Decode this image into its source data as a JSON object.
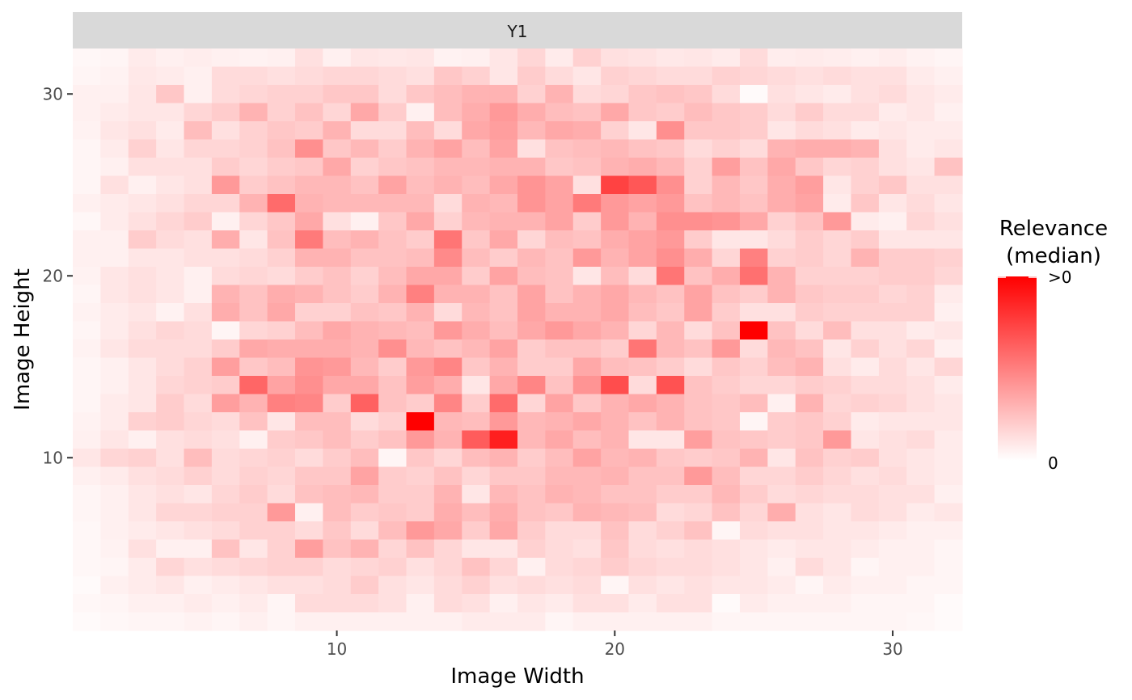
{
  "chart_data": {
    "type": "heatmap",
    "facet_label": "Y1",
    "xlabel": "Image Width",
    "ylabel": "Image Height",
    "x_ticks": [
      10,
      20,
      30
    ],
    "y_ticks": [
      10,
      20,
      30
    ],
    "xlim": [
      0.5,
      32.5
    ],
    "ylim": [
      0.5,
      32.5
    ],
    "grid": false,
    "legend": {
      "title_line1": "Relevance",
      "title_line2": "(median)",
      "high_label": ">0",
      "low_label": "0",
      "position": "right",
      "high_color": "#FF0000",
      "low_color": "#FFFFFF"
    },
    "colors": {
      "strip_background": "#D9D9D9",
      "panel_background": "#FFFFFF",
      "tick_color": "#333333"
    },
    "x": [
      1,
      2,
      3,
      4,
      5,
      6,
      7,
      8,
      9,
      10,
      11,
      12,
      13,
      14,
      15,
      16,
      17,
      18,
      19,
      20,
      21,
      22,
      23,
      24,
      25,
      26,
      27,
      28,
      29,
      30,
      31,
      32
    ],
    "y": [
      32,
      31,
      30,
      29,
      28,
      27,
      26,
      25,
      24,
      23,
      22,
      21,
      20,
      19,
      18,
      17,
      16,
      15,
      14,
      13,
      12,
      11,
      10,
      9,
      8,
      7,
      6,
      5,
      4,
      3,
      2,
      1
    ],
    "values": [
      [
        0.03,
        0.04,
        0.08,
        0.06,
        0.07,
        0.06,
        0.05,
        0.06,
        0.12,
        0.06,
        0.1,
        0.09,
        0.1,
        0.05,
        0.06,
        0.1,
        0.16,
        0.08,
        0.18,
        0.12,
        0.11,
        0.09,
        0.1,
        0.08,
        0.14,
        0.07,
        0.08,
        0.07,
        0.06,
        0.07,
        0.05,
        0.04
      ],
      [
        0.04,
        0.05,
        0.09,
        0.08,
        0.06,
        0.14,
        0.14,
        0.12,
        0.14,
        0.16,
        0.16,
        0.14,
        0.12,
        0.22,
        0.18,
        0.1,
        0.2,
        0.14,
        0.1,
        0.18,
        0.16,
        0.14,
        0.14,
        0.18,
        0.16,
        0.14,
        0.12,
        0.14,
        0.12,
        0.12,
        0.08,
        0.06
      ],
      [
        0.06,
        0.06,
        0.1,
        0.22,
        0.06,
        0.14,
        0.16,
        0.18,
        0.18,
        0.22,
        0.22,
        0.14,
        0.22,
        0.26,
        0.3,
        0.3,
        0.18,
        0.3,
        0.14,
        0.16,
        0.22,
        0.24,
        0.22,
        0.14,
        0.02,
        0.12,
        0.1,
        0.08,
        0.12,
        0.14,
        0.1,
        0.08
      ],
      [
        0.06,
        0.08,
        0.1,
        0.1,
        0.16,
        0.2,
        0.3,
        0.18,
        0.24,
        0.16,
        0.34,
        0.2,
        0.06,
        0.26,
        0.32,
        0.4,
        0.32,
        0.26,
        0.24,
        0.34,
        0.22,
        0.2,
        0.26,
        0.22,
        0.2,
        0.14,
        0.2,
        0.14,
        0.14,
        0.08,
        0.1,
        0.06
      ],
      [
        0.05,
        0.1,
        0.12,
        0.08,
        0.26,
        0.12,
        0.18,
        0.22,
        0.2,
        0.3,
        0.14,
        0.14,
        0.26,
        0.14,
        0.34,
        0.38,
        0.28,
        0.34,
        0.32,
        0.18,
        0.1,
        0.44,
        0.22,
        0.22,
        0.2,
        0.1,
        0.14,
        0.12,
        0.08,
        0.1,
        0.08,
        0.08
      ],
      [
        0.04,
        0.08,
        0.18,
        0.1,
        0.16,
        0.16,
        0.18,
        0.24,
        0.44,
        0.22,
        0.28,
        0.2,
        0.3,
        0.36,
        0.26,
        0.36,
        0.12,
        0.24,
        0.26,
        0.28,
        0.24,
        0.22,
        0.14,
        0.18,
        0.14,
        0.3,
        0.32,
        0.32,
        0.3,
        0.12,
        0.08,
        0.1
      ],
      [
        0.04,
        0.06,
        0.12,
        0.12,
        0.12,
        0.2,
        0.16,
        0.2,
        0.22,
        0.34,
        0.18,
        0.22,
        0.24,
        0.28,
        0.28,
        0.3,
        0.3,
        0.22,
        0.24,
        0.3,
        0.32,
        0.28,
        0.18,
        0.38,
        0.24,
        0.34,
        0.22,
        0.16,
        0.18,
        0.12,
        0.1,
        0.24
      ],
      [
        0.04,
        0.12,
        0.06,
        0.1,
        0.12,
        0.4,
        0.2,
        0.24,
        0.28,
        0.28,
        0.24,
        0.36,
        0.26,
        0.3,
        0.26,
        0.34,
        0.42,
        0.36,
        0.12,
        0.74,
        0.66,
        0.44,
        0.18,
        0.28,
        0.22,
        0.32,
        0.38,
        0.1,
        0.18,
        0.22,
        0.12,
        0.12
      ],
      [
        0.06,
        0.08,
        0.1,
        0.12,
        0.16,
        0.16,
        0.3,
        0.58,
        0.3,
        0.28,
        0.28,
        0.28,
        0.28,
        0.14,
        0.3,
        0.28,
        0.42,
        0.36,
        0.52,
        0.4,
        0.36,
        0.4,
        0.24,
        0.28,
        0.24,
        0.32,
        0.36,
        0.08,
        0.22,
        0.1,
        0.14,
        0.1
      ],
      [
        0.03,
        0.08,
        0.12,
        0.16,
        0.2,
        0.06,
        0.16,
        0.22,
        0.34,
        0.12,
        0.06,
        0.22,
        0.34,
        0.18,
        0.28,
        0.3,
        0.3,
        0.36,
        0.2,
        0.4,
        0.3,
        0.44,
        0.44,
        0.42,
        0.34,
        0.18,
        0.24,
        0.4,
        0.08,
        0.06,
        0.16,
        0.12
      ],
      [
        0.06,
        0.06,
        0.2,
        0.14,
        0.12,
        0.32,
        0.1,
        0.24,
        0.52,
        0.26,
        0.3,
        0.24,
        0.2,
        0.54,
        0.22,
        0.34,
        0.16,
        0.26,
        0.24,
        0.32,
        0.36,
        0.4,
        0.2,
        0.1,
        0.1,
        0.14,
        0.2,
        0.16,
        0.2,
        0.1,
        0.1,
        0.1
      ],
      [
        0.06,
        0.06,
        0.1,
        0.1,
        0.12,
        0.12,
        0.14,
        0.18,
        0.3,
        0.3,
        0.24,
        0.24,
        0.26,
        0.46,
        0.26,
        0.2,
        0.28,
        0.24,
        0.4,
        0.3,
        0.36,
        0.44,
        0.32,
        0.16,
        0.5,
        0.18,
        0.2,
        0.16,
        0.3,
        0.2,
        0.2,
        0.18
      ],
      [
        0.05,
        0.1,
        0.12,
        0.1,
        0.06,
        0.14,
        0.16,
        0.14,
        0.2,
        0.24,
        0.18,
        0.26,
        0.34,
        0.34,
        0.2,
        0.36,
        0.26,
        0.24,
        0.1,
        0.26,
        0.14,
        0.54,
        0.24,
        0.32,
        0.56,
        0.3,
        0.18,
        0.18,
        0.18,
        0.2,
        0.2,
        0.16
      ],
      [
        0.04,
        0.1,
        0.12,
        0.1,
        0.06,
        0.3,
        0.24,
        0.32,
        0.3,
        0.24,
        0.2,
        0.3,
        0.5,
        0.3,
        0.3,
        0.24,
        0.36,
        0.24,
        0.3,
        0.34,
        0.28,
        0.24,
        0.36,
        0.24,
        0.2,
        0.3,
        0.22,
        0.2,
        0.2,
        0.16,
        0.18,
        0.08
      ],
      [
        0.05,
        0.08,
        0.1,
        0.05,
        0.12,
        0.32,
        0.24,
        0.34,
        0.18,
        0.18,
        0.24,
        0.22,
        0.3,
        0.14,
        0.28,
        0.24,
        0.36,
        0.3,
        0.3,
        0.34,
        0.26,
        0.22,
        0.36,
        0.2,
        0.12,
        0.12,
        0.2,
        0.18,
        0.18,
        0.18,
        0.18,
        0.06
      ],
      [
        0.04,
        0.08,
        0.12,
        0.16,
        0.14,
        0.04,
        0.16,
        0.18,
        0.26,
        0.34,
        0.3,
        0.28,
        0.26,
        0.4,
        0.32,
        0.26,
        0.34,
        0.4,
        0.34,
        0.3,
        0.16,
        0.28,
        0.14,
        0.24,
        1.0,
        0.24,
        0.14,
        0.26,
        0.12,
        0.12,
        0.08,
        0.1
      ],
      [
        0.05,
        0.1,
        0.14,
        0.14,
        0.14,
        0.2,
        0.34,
        0.32,
        0.32,
        0.32,
        0.3,
        0.44,
        0.28,
        0.24,
        0.28,
        0.36,
        0.2,
        0.24,
        0.24,
        0.2,
        0.54,
        0.28,
        0.24,
        0.4,
        0.14,
        0.28,
        0.24,
        0.1,
        0.18,
        0.12,
        0.16,
        0.06
      ],
      [
        0.04,
        0.06,
        0.1,
        0.14,
        0.18,
        0.38,
        0.22,
        0.26,
        0.42,
        0.4,
        0.28,
        0.2,
        0.4,
        0.48,
        0.22,
        0.3,
        0.2,
        0.2,
        0.34,
        0.26,
        0.24,
        0.2,
        0.14,
        0.22,
        0.18,
        0.26,
        0.3,
        0.12,
        0.08,
        0.14,
        0.1,
        0.16
      ],
      [
        0.04,
        0.06,
        0.1,
        0.16,
        0.18,
        0.2,
        0.6,
        0.36,
        0.44,
        0.34,
        0.34,
        0.24,
        0.38,
        0.32,
        0.1,
        0.34,
        0.48,
        0.24,
        0.42,
        0.7,
        0.14,
        0.68,
        0.24,
        0.2,
        0.16,
        0.16,
        0.2,
        0.18,
        0.14,
        0.14,
        0.12,
        0.08
      ],
      [
        0.04,
        0.08,
        0.1,
        0.2,
        0.14,
        0.38,
        0.3,
        0.5,
        0.48,
        0.2,
        0.62,
        0.24,
        0.2,
        0.48,
        0.2,
        0.58,
        0.16,
        0.36,
        0.22,
        0.3,
        0.34,
        0.3,
        0.24,
        0.22,
        0.26,
        0.06,
        0.3,
        0.16,
        0.18,
        0.16,
        0.12,
        0.1
      ],
      [
        0.05,
        0.08,
        0.18,
        0.2,
        0.16,
        0.14,
        0.24,
        0.1,
        0.26,
        0.26,
        0.14,
        0.18,
        1.0,
        0.28,
        0.26,
        0.4,
        0.28,
        0.3,
        0.34,
        0.3,
        0.24,
        0.3,
        0.24,
        0.22,
        0.04,
        0.2,
        0.22,
        0.18,
        0.08,
        0.1,
        0.1,
        0.1
      ],
      [
        0.06,
        0.1,
        0.06,
        0.12,
        0.14,
        0.12,
        0.06,
        0.2,
        0.22,
        0.26,
        0.2,
        0.24,
        0.4,
        0.3,
        0.64,
        0.88,
        0.28,
        0.34,
        0.26,
        0.3,
        0.1,
        0.1,
        0.38,
        0.24,
        0.22,
        0.2,
        0.22,
        0.4,
        0.1,
        0.12,
        0.14,
        0.08
      ],
      [
        0.1,
        0.16,
        0.18,
        0.12,
        0.26,
        0.14,
        0.16,
        0.18,
        0.14,
        0.2,
        0.26,
        0.04,
        0.22,
        0.16,
        0.26,
        0.3,
        0.2,
        0.26,
        0.36,
        0.28,
        0.3,
        0.22,
        0.2,
        0.22,
        0.3,
        0.1,
        0.24,
        0.18,
        0.2,
        0.12,
        0.1,
        0.08
      ],
      [
        0.06,
        0.08,
        0.12,
        0.14,
        0.18,
        0.14,
        0.18,
        0.16,
        0.22,
        0.22,
        0.36,
        0.2,
        0.18,
        0.24,
        0.16,
        0.22,
        0.22,
        0.28,
        0.28,
        0.3,
        0.24,
        0.24,
        0.4,
        0.26,
        0.16,
        0.16,
        0.2,
        0.16,
        0.12,
        0.14,
        0.1,
        0.08
      ],
      [
        0.04,
        0.06,
        0.1,
        0.12,
        0.1,
        0.16,
        0.2,
        0.14,
        0.24,
        0.26,
        0.28,
        0.2,
        0.2,
        0.3,
        0.1,
        0.28,
        0.24,
        0.3,
        0.28,
        0.24,
        0.24,
        0.2,
        0.2,
        0.28,
        0.2,
        0.14,
        0.16,
        0.14,
        0.14,
        0.12,
        0.12,
        0.06
      ],
      [
        0.04,
        0.06,
        0.1,
        0.16,
        0.16,
        0.18,
        0.18,
        0.4,
        0.06,
        0.26,
        0.2,
        0.22,
        0.2,
        0.32,
        0.26,
        0.32,
        0.24,
        0.22,
        0.3,
        0.28,
        0.26,
        0.14,
        0.16,
        0.24,
        0.16,
        0.32,
        0.12,
        0.1,
        0.14,
        0.12,
        0.08,
        0.1
      ],
      [
        0.03,
        0.06,
        0.08,
        0.1,
        0.12,
        0.14,
        0.18,
        0.18,
        0.14,
        0.22,
        0.14,
        0.26,
        0.4,
        0.34,
        0.2,
        0.34,
        0.2,
        0.14,
        0.14,
        0.24,
        0.14,
        0.18,
        0.24,
        0.04,
        0.14,
        0.12,
        0.12,
        0.1,
        0.1,
        0.08,
        0.06,
        0.06
      ],
      [
        0.03,
        0.05,
        0.12,
        0.06,
        0.06,
        0.24,
        0.1,
        0.18,
        0.38,
        0.24,
        0.3,
        0.16,
        0.24,
        0.16,
        0.1,
        0.1,
        0.18,
        0.14,
        0.12,
        0.22,
        0.14,
        0.12,
        0.14,
        0.12,
        0.1,
        0.08,
        0.1,
        0.1,
        0.08,
        0.06,
        0.06,
        0.04
      ],
      [
        0.03,
        0.04,
        0.08,
        0.16,
        0.12,
        0.14,
        0.16,
        0.18,
        0.18,
        0.14,
        0.16,
        0.18,
        0.12,
        0.16,
        0.24,
        0.16,
        0.06,
        0.14,
        0.16,
        0.2,
        0.16,
        0.14,
        0.14,
        0.12,
        0.1,
        0.06,
        0.14,
        0.1,
        0.04,
        0.06,
        0.06,
        0.04
      ],
      [
        0.02,
        0.06,
        0.08,
        0.1,
        0.06,
        0.08,
        0.1,
        0.12,
        0.12,
        0.14,
        0.2,
        0.12,
        0.1,
        0.14,
        0.18,
        0.12,
        0.14,
        0.12,
        0.14,
        0.04,
        0.12,
        0.1,
        0.12,
        0.1,
        0.1,
        0.08,
        0.04,
        0.08,
        0.06,
        0.06,
        0.04,
        0.04
      ],
      [
        0.03,
        0.04,
        0.06,
        0.06,
        0.08,
        0.06,
        0.08,
        0.04,
        0.14,
        0.14,
        0.14,
        0.12,
        0.06,
        0.14,
        0.12,
        0.06,
        0.1,
        0.08,
        0.12,
        0.12,
        0.08,
        0.12,
        0.12,
        0.02,
        0.08,
        0.06,
        0.06,
        0.06,
        0.04,
        0.04,
        0.04,
        0.02
      ],
      [
        0.02,
        0.03,
        0.04,
        0.04,
        0.05,
        0.04,
        0.06,
        0.04,
        0.06,
        0.06,
        0.06,
        0.06,
        0.06,
        0.06,
        0.08,
        0.08,
        0.08,
        0.04,
        0.06,
        0.06,
        0.06,
        0.06,
        0.06,
        0.04,
        0.04,
        0.04,
        0.04,
        0.04,
        0.04,
        0.04,
        0.03,
        0.02
      ]
    ]
  }
}
